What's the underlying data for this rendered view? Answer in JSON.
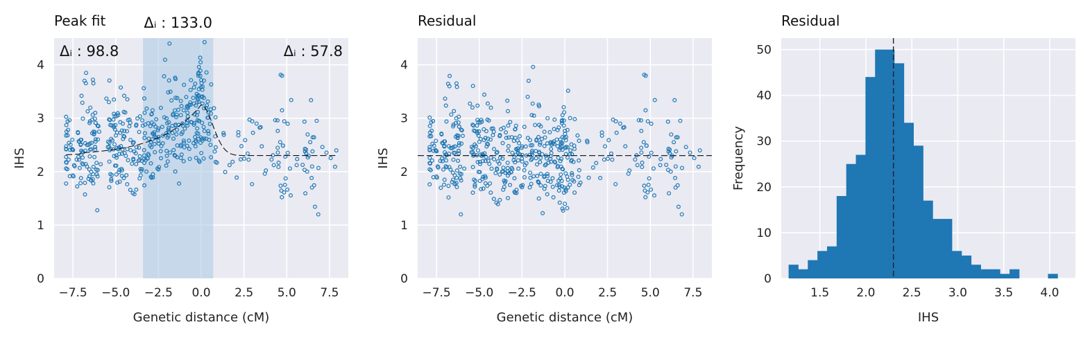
{
  "colors": {
    "background": "#eaeaf2",
    "grid": "#ffffff",
    "marker": "#1f77b4",
    "bar": "#1f77b4",
    "band": "#a8c8e3",
    "reference_line": "#222222"
  },
  "chart_data": [
    {
      "type": "scatter",
      "title": "Peak fit",
      "xlabel": "Genetic distance (cM)",
      "ylabel": "IHS",
      "xlim": [
        -8.6,
        8.6
      ],
      "ylim": [
        0,
        4.5
      ],
      "xticks": [
        -7.5,
        -5.0,
        -2.5,
        0.0,
        2.5,
        5.0,
        7.5
      ],
      "xtick_labels": [
        "−7.5",
        "−5.0",
        "−2.5",
        "0.0",
        "2.5",
        "5.0",
        "7.5"
      ],
      "yticks": [
        0,
        1,
        2,
        3,
        4
      ],
      "ytick_labels": [
        "0",
        "1",
        "2",
        "3",
        "4"
      ],
      "highlight_band": [
        -3.4,
        0.7
      ],
      "baseline": 2.3,
      "peak": {
        "center": 0.0,
        "height": 0.95,
        "width": 0.9
      },
      "annotations": [
        {
          "text": "Δᵢ : 98.8",
          "position": "top-left"
        },
        {
          "text": "Δᵢ : 133.0",
          "position": "top-center-above"
        },
        {
          "text": "Δᵢ : 57.8",
          "position": "top-right"
        }
      ],
      "points_summary": "approx. 480 scatter points clustered at x ≈ -7.5, -5, -3, -1.5, 0, 4.5, 6"
    },
    {
      "type": "scatter",
      "title": "Residual",
      "xlabel": "Genetic distance (cM)",
      "ylabel": "IHS",
      "xlim": [
        -8.6,
        8.6
      ],
      "ylim": [
        0,
        4.5
      ],
      "xticks": [
        -7.5,
        -5.0,
        -2.5,
        0.0,
        2.5,
        5.0,
        7.5
      ],
      "xtick_labels": [
        "−7.5",
        "−5.0",
        "−2.5",
        "0.0",
        "2.5",
        "5.0",
        "7.5"
      ],
      "yticks": [
        0,
        1,
        2,
        3,
        4
      ],
      "ytick_labels": [
        "0",
        "1",
        "2",
        "3",
        "4"
      ],
      "hline": 2.3
    },
    {
      "type": "bar",
      "title": "Residual",
      "xlabel": "IHS",
      "ylabel": "Frequency",
      "xlim": [
        1.08,
        4.28
      ],
      "ylim": [
        0,
        52.5
      ],
      "xticks": [
        1.5,
        2.0,
        2.5,
        3.0,
        3.5,
        4.0
      ],
      "xtick_labels": [
        "1.5",
        "2.0",
        "2.5",
        "3.0",
        "3.5",
        "4.0"
      ],
      "yticks": [
        0,
        10,
        20,
        30,
        40,
        50
      ],
      "ytick_labels": [
        "0",
        "10",
        "20",
        "30",
        "40",
        "50"
      ],
      "bin_start": 1.16,
      "bin_width": 0.1045,
      "counts": [
        3,
        2,
        4,
        6,
        7,
        18,
        25,
        27,
        44,
        50,
        50,
        47,
        34,
        29,
        17,
        13,
        13,
        6,
        5,
        3,
        2,
        2,
        1,
        2,
        0,
        0,
        0,
        1
      ],
      "vline": 2.3
    }
  ]
}
